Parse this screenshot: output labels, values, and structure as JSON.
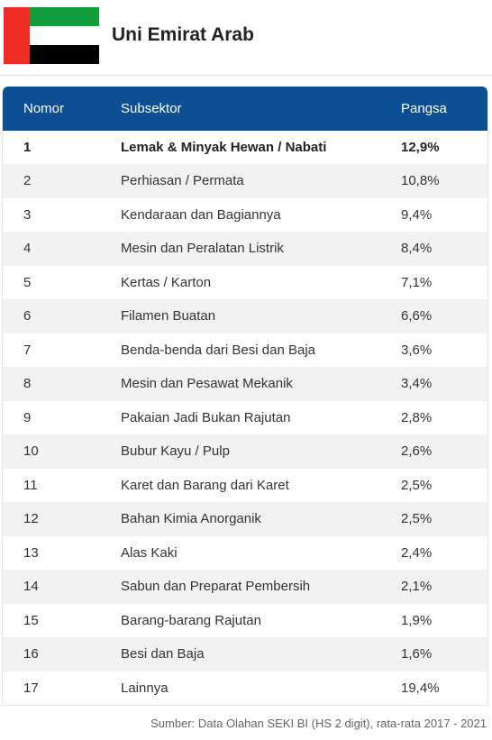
{
  "header": {
    "country": "Uni Emirat Arab",
    "flag_colors": {
      "hoist": "#ee2b24",
      "top": "#129c3c",
      "middle": "#ffffff",
      "bottom": "#000000"
    }
  },
  "table": {
    "columns": [
      "Nomor",
      "Subsektor",
      "Pangsa"
    ],
    "header_color": "#0c4f93",
    "rows": [
      {
        "no": "1",
        "sub": "Lemak & Minyak Hewan / Nabati",
        "share": "12,9%"
      },
      {
        "no": "2",
        "sub": "Perhiasan / Permata",
        "share": "10,8%"
      },
      {
        "no": "3",
        "sub": "Kendaraan dan Bagiannya",
        "share": "9,4%"
      },
      {
        "no": "4",
        "sub": "Mesin dan Peralatan Listrik",
        "share": "8,4%"
      },
      {
        "no": "5",
        "sub": "Kertas / Karton",
        "share": "7,1%"
      },
      {
        "no": "6",
        "sub": "Filamen Buatan",
        "share": "6,6%"
      },
      {
        "no": "7",
        "sub": "Benda-benda dari Besi dan Baja",
        "share": "3,6%"
      },
      {
        "no": "8",
        "sub": "Mesin dan Pesawat Mekanik",
        "share": "3,4%"
      },
      {
        "no": "9",
        "sub": "Pakaian Jadi Bukan Rajutan",
        "share": "2,8%"
      },
      {
        "no": "10",
        "sub": "Bubur Kayu / Pulp",
        "share": "2,6%"
      },
      {
        "no": "11",
        "sub": "Karet dan Barang dari Karet",
        "share": "2,5%"
      },
      {
        "no": "12",
        "sub": "Bahan Kimia Anorganik",
        "share": "2,5%"
      },
      {
        "no": "13",
        "sub": "Alas Kaki",
        "share": "2,4%"
      },
      {
        "no": "14",
        "sub": "Sabun dan Preparat Pembersih",
        "share": "2,1%"
      },
      {
        "no": "15",
        "sub": "Barang-barang Rajutan",
        "share": "1,9%"
      },
      {
        "no": "16",
        "sub": "Besi dan Baja",
        "share": "1,6%"
      },
      {
        "no": "17",
        "sub": "Lainnya",
        "share": "19,4%"
      }
    ]
  },
  "source": {
    "label": "Sumber:",
    "text": "Data Olahan SEKI BI (HS 2 digit), rata-rata 2017 - 2021"
  }
}
